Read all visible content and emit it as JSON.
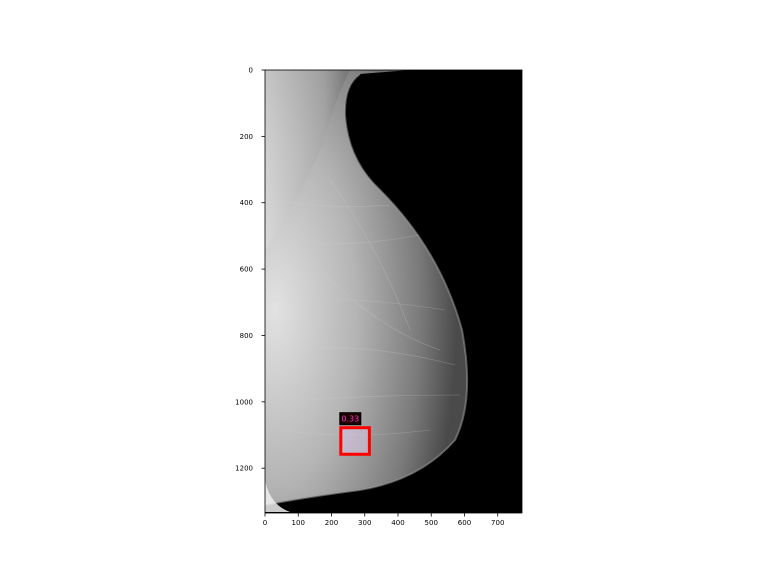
{
  "chart_data": {
    "type": "image",
    "image": {
      "width": 773,
      "height": 1335,
      "background": "#000000",
      "tissue_side": "left"
    },
    "x_ticks": [
      0,
      100,
      200,
      300,
      400,
      500,
      600,
      700
    ],
    "y_ticks": [
      0,
      200,
      400,
      600,
      800,
      1000,
      1200
    ],
    "xlim": [
      0,
      773
    ],
    "ylim": [
      1335,
      0
    ],
    "grid": false,
    "detections": [
      {
        "x0": 228,
        "y0": 1078,
        "x1": 314,
        "y1": 1158,
        "score": 0.33,
        "label": "0.33",
        "box_color": "#ff0000",
        "label_bg": "#1a0000",
        "label_color": "#ff33cc"
      }
    ]
  }
}
